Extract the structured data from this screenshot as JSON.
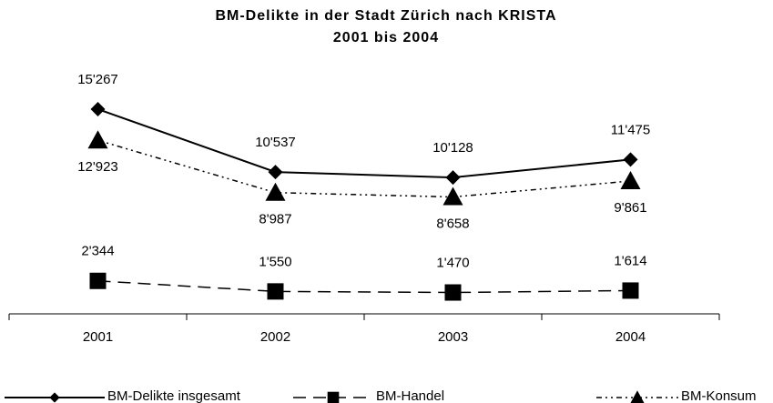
{
  "chart_data": {
    "type": "line",
    "title": "BM-Delikte in der Stadt Zürich nach KRISTA",
    "subtitle": "2001 bis 2004",
    "categories": [
      "2001",
      "2002",
      "2003",
      "2004"
    ],
    "series": [
      {
        "name": "BM-Delikte insgesamt",
        "color": "#000000",
        "marker": "diamond",
        "line_style": "solid",
        "label_position": "above",
        "values": [
          15267,
          10537,
          10128,
          11475
        ],
        "value_labels": [
          "15'267",
          "10'537",
          "10'128",
          "11'475"
        ]
      },
      {
        "name": "BM-Handel",
        "color": "#000000",
        "marker": "square",
        "line_style": "dashed",
        "label_position": "above",
        "values": [
          2344,
          1550,
          1470,
          1614
        ],
        "value_labels": [
          "2'344",
          "1'550",
          "1'470",
          "1'614"
        ]
      },
      {
        "name": "BM-Konsum",
        "color": "#000000",
        "marker": "triangle",
        "line_style": "dashdotdot",
        "label_position": "below",
        "values": [
          12923,
          8987,
          8658,
          9861
        ],
        "value_labels": [
          "12'923",
          "8'987",
          "8'658",
          "9'861"
        ]
      }
    ],
    "legend": "bottom"
  }
}
